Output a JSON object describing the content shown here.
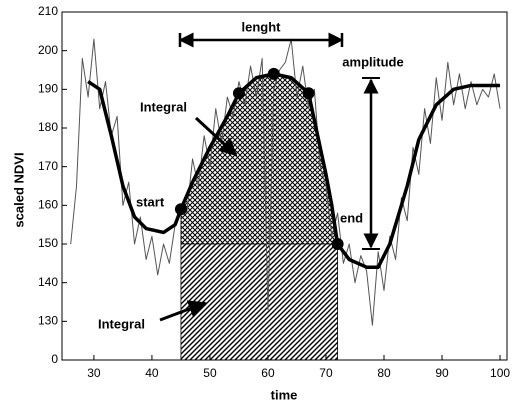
{
  "chart_data": {
    "type": "line",
    "xlabel": "time",
    "ylabel": "scaled NDVI",
    "xlim": [
      24.5,
      101.2
    ],
    "ylim": [
      120,
      210
    ],
    "xticks": [
      30,
      40,
      50,
      60,
      70,
      80,
      90,
      100
    ],
    "yticks": [
      {
        "value": 120,
        "label": "0"
      },
      130,
      140,
      150,
      160,
      170,
      180,
      190,
      200,
      210
    ],
    "series": [
      {
        "color": "#555555",
        "x": [
          26,
          27,
          28,
          29,
          30,
          31,
          32,
          33,
          34,
          35,
          36,
          37,
          38,
          39,
          40,
          41,
          42,
          43,
          44,
          45,
          46,
          47,
          48,
          49,
          50,
          51,
          52,
          53,
          54,
          55,
          56,
          57,
          58,
          59,
          60,
          61,
          62,
          63,
          64,
          65,
          66,
          67,
          68,
          69,
          70,
          71,
          72,
          73,
          74,
          75,
          76,
          77,
          78,
          79,
          80,
          81,
          82,
          83,
          84,
          85,
          86,
          87,
          88,
          89,
          90,
          91,
          92,
          93,
          94,
          95,
          96,
          97,
          98,
          99,
          100
        ],
        "values": [
          150,
          165,
          198,
          188,
          203,
          185,
          192,
          178,
          183,
          160,
          166,
          150,
          157,
          146,
          152,
          142,
          150,
          145,
          155,
          160,
          158,
          172,
          165,
          178,
          170,
          185,
          176,
          188,
          183,
          192,
          186,
          196,
          188,
          198,
          133,
          190,
          195,
          197,
          203,
          188,
          196,
          185,
          190,
          170,
          165,
          152,
          158,
          145,
          150,
          140,
          147,
          143,
          129,
          148,
          138,
          152,
          146,
          162,
          156,
          175,
          168,
          185,
          176,
          193,
          182,
          197,
          186,
          194,
          185,
          192,
          186,
          190,
          188,
          194,
          185
        ]
      },
      {
        "color": "#000000",
        "x": [
          29,
          31,
          33,
          35,
          37,
          39,
          42,
          44,
          45,
          47,
          50,
          53,
          55,
          58,
          61,
          64,
          67,
          68,
          70,
          71,
          72,
          74,
          77,
          79,
          81,
          84,
          86,
          89,
          92,
          95,
          100
        ],
        "values": [
          192,
          190,
          178,
          165,
          157,
          154,
          153,
          155,
          159,
          166,
          175,
          183,
          189,
          193,
          194,
          193,
          189,
          182,
          168,
          160,
          150,
          146,
          144,
          144,
          150,
          165,
          177,
          186,
          190,
          191,
          191
        ]
      }
    ],
    "markers": {
      "x": [
        45,
        55,
        61,
        67,
        72
      ],
      "y": [
        159,
        189,
        194,
        189,
        150
      ]
    },
    "annotations": [
      "lenght",
      "amplitude",
      "Integral",
      "start",
      "end",
      "Integral"
    ]
  }
}
